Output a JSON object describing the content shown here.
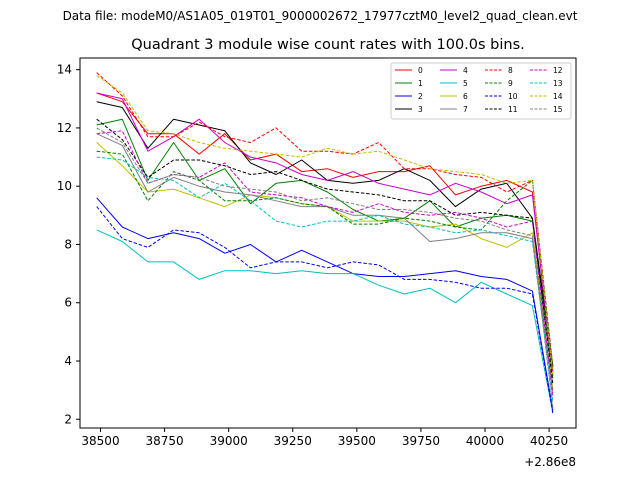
{
  "file_note": "Data file: modeM0/AS1A05_019T01_9000002672_17977cztM0_level2_quad_clean.evt",
  "chart_data": {
    "type": "line",
    "title": "Quadrant 3 module wise count rates with 100.0s bins.",
    "xlabel": "",
    "ylabel": "",
    "x_offset_label": "+2.86e8",
    "xlim": [
      38420,
      40355
    ],
    "ylim": [
      1.7,
      14.4
    ],
    "xticks": [
      38500,
      38750,
      39000,
      39250,
      39500,
      39750,
      40000,
      40250
    ],
    "yticks": [
      2,
      4,
      6,
      8,
      10,
      12,
      14
    ],
    "x": [
      38485,
      38585,
      38685,
      38785,
      38885,
      38985,
      39085,
      39185,
      39285,
      39385,
      39485,
      39585,
      39685,
      39785,
      39885,
      39985,
      40085,
      40185,
      40265
    ],
    "legend_position": "top-right",
    "series": [
      {
        "name": "0",
        "color": "#ff0000",
        "dash": "solid",
        "values": [
          13.2,
          12.9,
          11.8,
          11.8,
          11.1,
          11.8,
          10.9,
          11.1,
          10.5,
          10.6,
          10.3,
          10.5,
          10.5,
          10.7,
          9.7,
          10.0,
          10.2,
          9.8,
          3.5
        ]
      },
      {
        "name": "1",
        "color": "#008000",
        "dash": "solid",
        "values": [
          12.1,
          12.3,
          10.2,
          11.5,
          10.2,
          10.6,
          9.4,
          10.1,
          10.2,
          9.8,
          9.2,
          8.8,
          8.9,
          9.5,
          8.6,
          8.9,
          9.0,
          8.8,
          3.4
        ]
      },
      {
        "name": "2",
        "color": "#0000ff",
        "dash": "solid",
        "values": [
          9.6,
          8.6,
          8.2,
          8.4,
          8.2,
          7.7,
          8.0,
          7.4,
          7.8,
          7.4,
          7.0,
          6.9,
          6.9,
          7.0,
          7.1,
          6.9,
          6.8,
          6.4,
          2.3
        ]
      },
      {
        "name": "3",
        "color": "#000000",
        "dash": "solid",
        "values": [
          12.9,
          12.7,
          11.3,
          12.3,
          12.1,
          11.9,
          10.8,
          10.4,
          10.9,
          10.2,
          10.1,
          10.2,
          10.6,
          10.2,
          9.3,
          9.9,
          10.1,
          8.9,
          3.8
        ]
      },
      {
        "name": "4",
        "color": "#cc00cc",
        "dash": "solid",
        "values": [
          13.2,
          13.0,
          11.2,
          11.7,
          12.3,
          11.5,
          11.0,
          10.8,
          10.4,
          10.2,
          10.5,
          10.1,
          9.9,
          9.7,
          10.1,
          9.8,
          9.4,
          9.7,
          3.6
        ]
      },
      {
        "name": "5",
        "color": "#00bfbf",
        "dash": "solid",
        "values": [
          8.5,
          8.1,
          7.4,
          7.4,
          6.8,
          7.1,
          7.1,
          7.0,
          7.1,
          7.0,
          7.0,
          6.6,
          6.3,
          6.5,
          6.0,
          6.7,
          6.3,
          5.9,
          2.2
        ]
      },
      {
        "name": "6",
        "color": "#bfbf00",
        "dash": "solid",
        "values": [
          11.5,
          10.7,
          9.8,
          9.9,
          9.6,
          9.3,
          9.7,
          9.6,
          9.4,
          9.3,
          8.8,
          8.8,
          8.8,
          8.6,
          8.7,
          8.2,
          7.9,
          8.4,
          3.0
        ]
      },
      {
        "name": "7",
        "color": "#808080",
        "dash": "solid",
        "values": [
          11.8,
          11.4,
          9.8,
          10.3,
          10.0,
          9.8,
          9.7,
          9.5,
          9.3,
          9.3,
          9.0,
          9.0,
          8.9,
          8.1,
          8.2,
          8.4,
          8.4,
          8.2,
          2.9
        ]
      },
      {
        "name": "8",
        "color": "#ff0000",
        "dash": "dashed",
        "values": [
          13.9,
          13.1,
          11.7,
          11.7,
          12.2,
          11.7,
          11.5,
          12.0,
          11.2,
          11.2,
          11.1,
          11.5,
          10.6,
          10.6,
          10.4,
          10.3,
          9.8,
          10.2,
          3.8
        ]
      },
      {
        "name": "9",
        "color": "#008000",
        "dash": "dashed",
        "values": [
          11.2,
          11.1,
          9.5,
          10.5,
          10.2,
          9.5,
          9.5,
          9.6,
          9.4,
          9.3,
          8.7,
          8.7,
          8.9,
          8.8,
          8.6,
          8.5,
          9.5,
          10.2,
          3.7
        ]
      },
      {
        "name": "10",
        "color": "#0000ff",
        "dash": "dashed",
        "values": [
          9.3,
          8.2,
          7.9,
          8.5,
          8.4,
          7.9,
          7.2,
          7.4,
          7.4,
          7.2,
          7.4,
          7.3,
          6.8,
          6.8,
          6.7,
          6.5,
          6.5,
          6.3,
          2.2
        ]
      },
      {
        "name": "11",
        "color": "#000000",
        "dash": "dashed",
        "values": [
          12.3,
          11.6,
          10.3,
          10.9,
          10.9,
          10.7,
          10.4,
          10.5,
          10.2,
          9.9,
          9.8,
          9.7,
          9.5,
          9.5,
          9.0,
          9.1,
          9.0,
          8.9,
          3.2
        ]
      },
      {
        "name": "12",
        "color": "#cc00cc",
        "dash": "dashed",
        "values": [
          11.8,
          11.9,
          10.1,
          10.4,
          10.3,
          10.8,
          9.8,
          9.7,
          9.6,
          9.3,
          9.1,
          9.4,
          9.1,
          9.0,
          9.1,
          8.9,
          8.6,
          8.8,
          2.8
        ]
      },
      {
        "name": "13",
        "color": "#00bfbf",
        "dash": "dashed",
        "values": [
          11.0,
          10.9,
          10.3,
          10.2,
          9.6,
          10.1,
          9.5,
          8.8,
          8.6,
          8.8,
          8.8,
          9.0,
          8.7,
          8.6,
          8.4,
          8.5,
          8.3,
          8.1,
          2.6
        ]
      },
      {
        "name": "14",
        "color": "#bfbf00",
        "dash": "dashed",
        "values": [
          13.8,
          13.2,
          11.9,
          11.8,
          11.5,
          11.3,
          11.2,
          11.1,
          11.0,
          11.3,
          11.1,
          11.2,
          10.9,
          10.6,
          10.5,
          10.4,
          10.1,
          10.2,
          3.5
        ]
      },
      {
        "name": "15",
        "color": "#808080",
        "dash": "dashed",
        "values": [
          12.0,
          11.5,
          10.1,
          10.4,
          10.3,
          10.0,
          9.9,
          9.8,
          9.5,
          9.6,
          9.4,
          9.2,
          9.2,
          9.1,
          8.9,
          8.8,
          8.5,
          8.3,
          2.4
        ]
      }
    ]
  }
}
